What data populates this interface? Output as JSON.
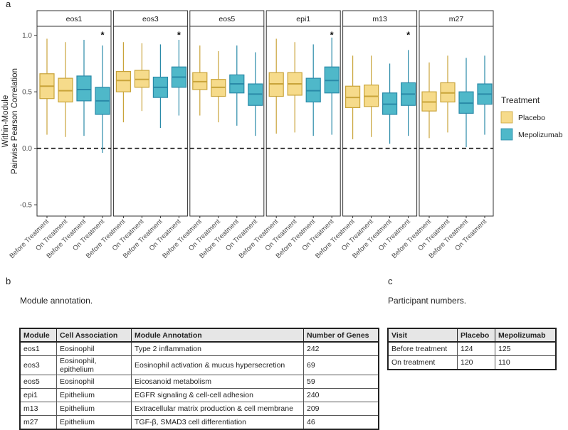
{
  "figure": {
    "panel_a": "a",
    "panel_b": "b",
    "panel_c": "c"
  },
  "chart_data": {
    "type": "box",
    "ylabel_line1": "Within-Module",
    "ylabel_line2": "Pairwise Pearson Correlation",
    "ylim": [
      -0.6,
      1.08
    ],
    "yticks": [
      -0.5,
      0.0,
      0.5,
      1.0
    ],
    "ytick_labels": [
      "-0.5",
      "0.0",
      "0.5",
      "1.0"
    ],
    "reference_line": 0.0,
    "categories": [
      "Before Treatment",
      "On Treatment",
      "Before Treatment",
      "On Treatment"
    ],
    "category_groups": [
      "Placebo",
      "Placebo",
      "Mepolizumab",
      "Mepolizumab"
    ],
    "legend": {
      "title": "Treatment",
      "entries": [
        {
          "name": "Placebo",
          "fill": "#f6db8b",
          "stroke": "#c9a43a"
        },
        {
          "name": "Mepolizumab",
          "fill": "#4fb8c9",
          "stroke": "#2a8aa8"
        }
      ]
    },
    "panels": [
      {
        "name": "eos1",
        "star": true,
        "boxes": [
          {
            "min": 0.12,
            "q1": 0.44,
            "median": 0.55,
            "q3": 0.66,
            "max": 0.97
          },
          {
            "min": 0.1,
            "q1": 0.41,
            "median": 0.51,
            "q3": 0.62,
            "max": 0.94
          },
          {
            "min": 0.11,
            "q1": 0.42,
            "median": 0.52,
            "q3": 0.64,
            "max": 0.96
          },
          {
            "min": -0.04,
            "q1": 0.3,
            "median": 0.42,
            "q3": 0.54,
            "max": 0.91
          }
        ]
      },
      {
        "name": "eos3",
        "star": true,
        "boxes": [
          {
            "min": 0.23,
            "q1": 0.5,
            "median": 0.6,
            "q3": 0.68,
            "max": 0.94
          },
          {
            "min": 0.33,
            "q1": 0.54,
            "median": 0.61,
            "q3": 0.69,
            "max": 0.93
          },
          {
            "min": 0.18,
            "q1": 0.45,
            "median": 0.54,
            "q3": 0.63,
            "max": 0.92
          },
          {
            "min": 0.29,
            "q1": 0.54,
            "median": 0.63,
            "q3": 0.72,
            "max": 0.96
          }
        ]
      },
      {
        "name": "eos5",
        "star": false,
        "boxes": [
          {
            "min": 0.29,
            "q1": 0.52,
            "median": 0.59,
            "q3": 0.67,
            "max": 0.91
          },
          {
            "min": 0.23,
            "q1": 0.46,
            "median": 0.54,
            "q3": 0.61,
            "max": 0.86
          },
          {
            "min": 0.2,
            "q1": 0.49,
            "median": 0.57,
            "q3": 0.65,
            "max": 0.91
          },
          {
            "min": 0.11,
            "q1": 0.38,
            "median": 0.48,
            "q3": 0.57,
            "max": 0.85
          }
        ]
      },
      {
        "name": "epi1",
        "star": true,
        "boxes": [
          {
            "min": 0.13,
            "q1": 0.46,
            "median": 0.57,
            "q3": 0.67,
            "max": 0.97
          },
          {
            "min": 0.14,
            "q1": 0.47,
            "median": 0.57,
            "q3": 0.67,
            "max": 0.94
          },
          {
            "min": 0.11,
            "q1": 0.41,
            "median": 0.51,
            "q3": 0.62,
            "max": 0.92
          },
          {
            "min": 0.12,
            "q1": 0.49,
            "median": 0.6,
            "q3": 0.72,
            "max": 0.98
          }
        ]
      },
      {
        "name": "m13",
        "star": true,
        "boxes": [
          {
            "min": 0.08,
            "q1": 0.36,
            "median": 0.45,
            "q3": 0.55,
            "max": 0.82
          },
          {
            "min": 0.1,
            "q1": 0.37,
            "median": 0.46,
            "q3": 0.56,
            "max": 0.82
          },
          {
            "min": 0.04,
            "q1": 0.3,
            "median": 0.39,
            "q3": 0.49,
            "max": 0.75
          },
          {
            "min": 0.11,
            "q1": 0.38,
            "median": 0.48,
            "q3": 0.58,
            "max": 0.87
          }
        ]
      },
      {
        "name": "m27",
        "star": false,
        "boxes": [
          {
            "min": 0.09,
            "q1": 0.33,
            "median": 0.41,
            "q3": 0.5,
            "max": 0.76
          },
          {
            "min": 0.14,
            "q1": 0.41,
            "median": 0.49,
            "q3": 0.58,
            "max": 0.82
          },
          {
            "min": 0.01,
            "q1": 0.31,
            "median": 0.4,
            "q3": 0.5,
            "max": 0.8
          },
          {
            "min": 0.12,
            "q1": 0.39,
            "median": 0.48,
            "q3": 0.57,
            "max": 0.82
          }
        ]
      }
    ]
  },
  "module_table": {
    "caption": "Module annotation.",
    "headers": [
      "Module",
      "Cell Association",
      "Module Annotation",
      "Number of Genes"
    ],
    "rows": [
      [
        "eos1",
        "Eosinophil",
        "Type 2 inflammation",
        "242"
      ],
      [
        "eos3",
        "Eosinophil, epithelium",
        "Eosinophil activation & mucus hypersecretion",
        "69"
      ],
      [
        "eos5",
        "Eosinophil",
        "Eicosanoid metabolism",
        "59"
      ],
      [
        "epi1",
        "Epithelium",
        "EGFR signaling & cell-cell adhesion",
        "240"
      ],
      [
        "m13",
        "Epithelium",
        "Extracellular matrix production & cell membrane",
        "209"
      ],
      [
        "m27",
        "Epithelium",
        "TGF-β, SMAD3 cell differentiation",
        "46"
      ]
    ]
  },
  "participant_table": {
    "caption": "Participant numbers.",
    "headers": [
      "Visit",
      "Placebo",
      "Mepolizumab"
    ],
    "rows": [
      [
        "Before treatment",
        "124",
        "125"
      ],
      [
        "On treatment",
        "120",
        "110"
      ]
    ]
  }
}
